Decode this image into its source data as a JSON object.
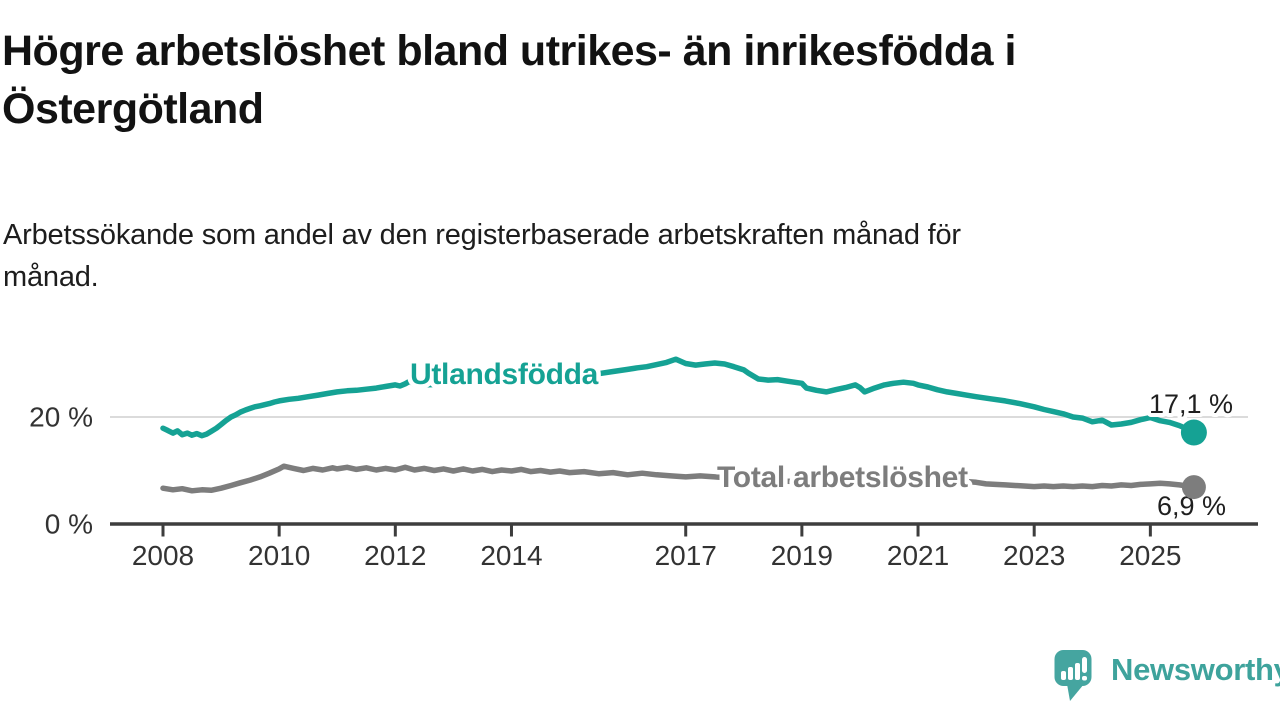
{
  "header": {
    "title": "Högre arbetslöshet bland utrikes- än inrikesfödda i Östergötland",
    "title_line1": "Högre arbetslöshet bland utrikes- än inrikesfödda i",
    "title_line2": "Östergötland",
    "subtitle": "Arbetssökande som andel av den registerbaserade arbetskraften månad för månad.",
    "subtitle_line1": "Arbetssökande som andel av den registerbaserade arbetskraften månad för",
    "subtitle_line2": "månad."
  },
  "branding": {
    "logo_text": "Newsworthy",
    "logo_color": "#45A5A0",
    "logo_text_color": "#3EA39C"
  },
  "chart_data": {
    "type": "line",
    "x_unit": "year (monthly resolution)",
    "x_range": [
      2008.0,
      2025.75
    ],
    "ylim": [
      0,
      34
    ],
    "grid": "single horizontal gridline at 20 %",
    "legend_position": "inline labels on lines",
    "yticks": [
      {
        "value": 20,
        "label": "20 %"
      },
      {
        "value": 0,
        "label": "0 %"
      }
    ],
    "xticks": [
      {
        "year": 2008,
        "label": "2008"
      },
      {
        "year": 2010,
        "label": "2010"
      },
      {
        "year": 2012,
        "label": "2012"
      },
      {
        "year": 2014,
        "label": "2014"
      },
      {
        "year": 2017,
        "label": "2017"
      },
      {
        "year": 2019,
        "label": "2019"
      },
      {
        "year": 2021,
        "label": "2021"
      },
      {
        "year": 2023,
        "label": "2023"
      },
      {
        "year": 2025,
        "label": "2025"
      }
    ],
    "style": {
      "grid_color": "#cfcfcf",
      "axis_color": "#3d3d3d",
      "tick_label_color": "#333333",
      "value_label_color": "#1f1f1f",
      "background": "#ffffff"
    },
    "series": [
      {
        "name": "Utlandsfödda",
        "color": "#15A294",
        "end_value": 17.1,
        "end_label": "17,1 %",
        "points": [
          [
            2008.0,
            17.9
          ],
          [
            2008.08,
            17.5
          ],
          [
            2008.17,
            17.0
          ],
          [
            2008.25,
            17.4
          ],
          [
            2008.33,
            16.7
          ],
          [
            2008.42,
            17.0
          ],
          [
            2008.5,
            16.6
          ],
          [
            2008.58,
            16.9
          ],
          [
            2008.67,
            16.5
          ],
          [
            2008.75,
            16.8
          ],
          [
            2008.83,
            17.3
          ],
          [
            2008.92,
            17.9
          ],
          [
            2009.0,
            18.6
          ],
          [
            2009.08,
            19.3
          ],
          [
            2009.17,
            20.0
          ],
          [
            2009.25,
            20.4
          ],
          [
            2009.33,
            20.9
          ],
          [
            2009.42,
            21.3
          ],
          [
            2009.5,
            21.6
          ],
          [
            2009.58,
            21.9
          ],
          [
            2009.67,
            22.1
          ],
          [
            2009.75,
            22.3
          ],
          [
            2009.83,
            22.5
          ],
          [
            2009.92,
            22.8
          ],
          [
            2010.0,
            23.0
          ],
          [
            2010.17,
            23.3
          ],
          [
            2010.33,
            23.5
          ],
          [
            2010.5,
            23.8
          ],
          [
            2010.67,
            24.1
          ],
          [
            2010.83,
            24.4
          ],
          [
            2011.0,
            24.7
          ],
          [
            2011.17,
            24.9
          ],
          [
            2011.33,
            25.0
          ],
          [
            2011.5,
            25.2
          ],
          [
            2011.67,
            25.4
          ],
          [
            2011.83,
            25.7
          ],
          [
            2012.0,
            26.0
          ],
          [
            2012.08,
            25.8
          ],
          [
            2012.17,
            26.2
          ],
          [
            2012.25,
            26.7
          ],
          [
            2012.33,
            26.1
          ],
          [
            2012.5,
            26.0
          ],
          [
            2012.75,
            26.1
          ],
          [
            2013.0,
            26.2
          ],
          [
            2013.25,
            26.3
          ],
          [
            2013.5,
            26.5
          ],
          [
            2013.75,
            26.6
          ],
          [
            2014.0,
            26.8
          ],
          [
            2014.25,
            27.0
          ],
          [
            2014.5,
            27.2
          ],
          [
            2014.75,
            27.4
          ],
          [
            2015.0,
            27.6
          ],
          [
            2015.25,
            27.9
          ],
          [
            2015.5,
            28.1
          ],
          [
            2015.75,
            28.5
          ],
          [
            2016.0,
            28.9
          ],
          [
            2016.17,
            29.2
          ],
          [
            2016.33,
            29.4
          ],
          [
            2016.5,
            29.8
          ],
          [
            2016.67,
            30.2
          ],
          [
            2016.83,
            30.8
          ],
          [
            2017.0,
            30.0
          ],
          [
            2017.17,
            29.7
          ],
          [
            2017.33,
            29.9
          ],
          [
            2017.5,
            30.1
          ],
          [
            2017.67,
            29.9
          ],
          [
            2017.83,
            29.4
          ],
          [
            2018.0,
            28.8
          ],
          [
            2018.08,
            28.2
          ],
          [
            2018.25,
            27.1
          ],
          [
            2018.42,
            26.9
          ],
          [
            2018.58,
            27.0
          ],
          [
            2018.75,
            26.7
          ],
          [
            2019.0,
            26.3
          ],
          [
            2019.08,
            25.4
          ],
          [
            2019.25,
            25.0
          ],
          [
            2019.42,
            24.7
          ],
          [
            2019.58,
            25.1
          ],
          [
            2019.75,
            25.5
          ],
          [
            2019.92,
            26.0
          ],
          [
            2020.0,
            25.5
          ],
          [
            2020.08,
            24.7
          ],
          [
            2020.25,
            25.4
          ],
          [
            2020.42,
            26.0
          ],
          [
            2020.58,
            26.3
          ],
          [
            2020.75,
            26.5
          ],
          [
            2020.92,
            26.3
          ],
          [
            2021.0,
            26.0
          ],
          [
            2021.17,
            25.6
          ],
          [
            2021.33,
            25.1
          ],
          [
            2021.5,
            24.7
          ],
          [
            2021.67,
            24.4
          ],
          [
            2021.83,
            24.1
          ],
          [
            2022.0,
            23.8
          ],
          [
            2022.25,
            23.4
          ],
          [
            2022.5,
            23.0
          ],
          [
            2022.75,
            22.5
          ],
          [
            2023.0,
            21.9
          ],
          [
            2023.17,
            21.4
          ],
          [
            2023.33,
            21.0
          ],
          [
            2023.5,
            20.6
          ],
          [
            2023.67,
            20.0
          ],
          [
            2023.83,
            19.8
          ],
          [
            2024.0,
            19.1
          ],
          [
            2024.17,
            19.4
          ],
          [
            2024.33,
            18.5
          ],
          [
            2024.5,
            18.7
          ],
          [
            2024.67,
            19.0
          ],
          [
            2024.83,
            19.5
          ],
          [
            2025.0,
            19.9
          ],
          [
            2025.17,
            19.3
          ],
          [
            2025.33,
            19.0
          ],
          [
            2025.5,
            18.4
          ],
          [
            2025.63,
            17.8
          ],
          [
            2025.75,
            17.1
          ]
        ]
      },
      {
        "name": "Total arbetslöshet",
        "color": "#7D7D7D",
        "end_value": 6.9,
        "end_label": "6,9 %",
        "points": [
          [
            2008.0,
            6.7
          ],
          [
            2008.17,
            6.4
          ],
          [
            2008.33,
            6.6
          ],
          [
            2008.5,
            6.2
          ],
          [
            2008.67,
            6.4
          ],
          [
            2008.83,
            6.3
          ],
          [
            2009.0,
            6.7
          ],
          [
            2009.17,
            7.2
          ],
          [
            2009.33,
            7.7
          ],
          [
            2009.5,
            8.2
          ],
          [
            2009.67,
            8.8
          ],
          [
            2009.83,
            9.5
          ],
          [
            2010.0,
            10.3
          ],
          [
            2010.08,
            10.8
          ],
          [
            2010.25,
            10.4
          ],
          [
            2010.42,
            10.0
          ],
          [
            2010.58,
            10.4
          ],
          [
            2010.75,
            10.1
          ],
          [
            2010.92,
            10.5
          ],
          [
            2011.0,
            10.3
          ],
          [
            2011.17,
            10.6
          ],
          [
            2011.33,
            10.2
          ],
          [
            2011.5,
            10.5
          ],
          [
            2011.67,
            10.1
          ],
          [
            2011.83,
            10.4
          ],
          [
            2012.0,
            10.1
          ],
          [
            2012.17,
            10.6
          ],
          [
            2012.33,
            10.1
          ],
          [
            2012.5,
            10.4
          ],
          [
            2012.67,
            10.0
          ],
          [
            2012.83,
            10.3
          ],
          [
            2013.0,
            9.9
          ],
          [
            2013.17,
            10.3
          ],
          [
            2013.33,
            9.9
          ],
          [
            2013.5,
            10.2
          ],
          [
            2013.67,
            9.8
          ],
          [
            2013.83,
            10.1
          ],
          [
            2014.0,
            9.9
          ],
          [
            2014.17,
            10.2
          ],
          [
            2014.33,
            9.8
          ],
          [
            2014.5,
            10.0
          ],
          [
            2014.67,
            9.7
          ],
          [
            2014.83,
            9.9
          ],
          [
            2015.0,
            9.6
          ],
          [
            2015.25,
            9.8
          ],
          [
            2015.5,
            9.4
          ],
          [
            2015.75,
            9.6
          ],
          [
            2016.0,
            9.2
          ],
          [
            2016.25,
            9.5
          ],
          [
            2016.5,
            9.2
          ],
          [
            2016.75,
            9.0
          ],
          [
            2017.0,
            8.8
          ],
          [
            2017.25,
            9.0
          ],
          [
            2017.5,
            8.8
          ],
          [
            2017.75,
            8.6
          ],
          [
            2018.0,
            8.4
          ],
          [
            2018.25,
            8.3
          ],
          [
            2018.5,
            8.1
          ],
          [
            2018.75,
            8.0
          ],
          [
            2019.0,
            7.9
          ],
          [
            2019.25,
            7.8
          ],
          [
            2019.5,
            7.8
          ],
          [
            2019.75,
            7.9
          ],
          [
            2020.0,
            8.2
          ],
          [
            2020.25,
            8.9
          ],
          [
            2020.5,
            9.2
          ],
          [
            2020.75,
            9.0
          ],
          [
            2021.0,
            8.8
          ],
          [
            2021.25,
            8.5
          ],
          [
            2021.5,
            8.2
          ],
          [
            2021.75,
            8.0
          ],
          [
            2022.0,
            7.8
          ],
          [
            2022.17,
            7.5
          ],
          [
            2022.33,
            7.4
          ],
          [
            2022.5,
            7.3
          ],
          [
            2022.67,
            7.2
          ],
          [
            2022.83,
            7.1
          ],
          [
            2023.0,
            7.0
          ],
          [
            2023.17,
            7.1
          ],
          [
            2023.33,
            7.0
          ],
          [
            2023.5,
            7.1
          ],
          [
            2023.67,
            7.0
          ],
          [
            2023.83,
            7.1
          ],
          [
            2024.0,
            7.0
          ],
          [
            2024.17,
            7.2
          ],
          [
            2024.33,
            7.1
          ],
          [
            2024.5,
            7.3
          ],
          [
            2024.67,
            7.2
          ],
          [
            2024.83,
            7.4
          ],
          [
            2025.0,
            7.5
          ],
          [
            2025.17,
            7.6
          ],
          [
            2025.33,
            7.5
          ],
          [
            2025.5,
            7.3
          ],
          [
            2025.63,
            7.1
          ],
          [
            2025.75,
            6.9
          ]
        ]
      }
    ]
  }
}
